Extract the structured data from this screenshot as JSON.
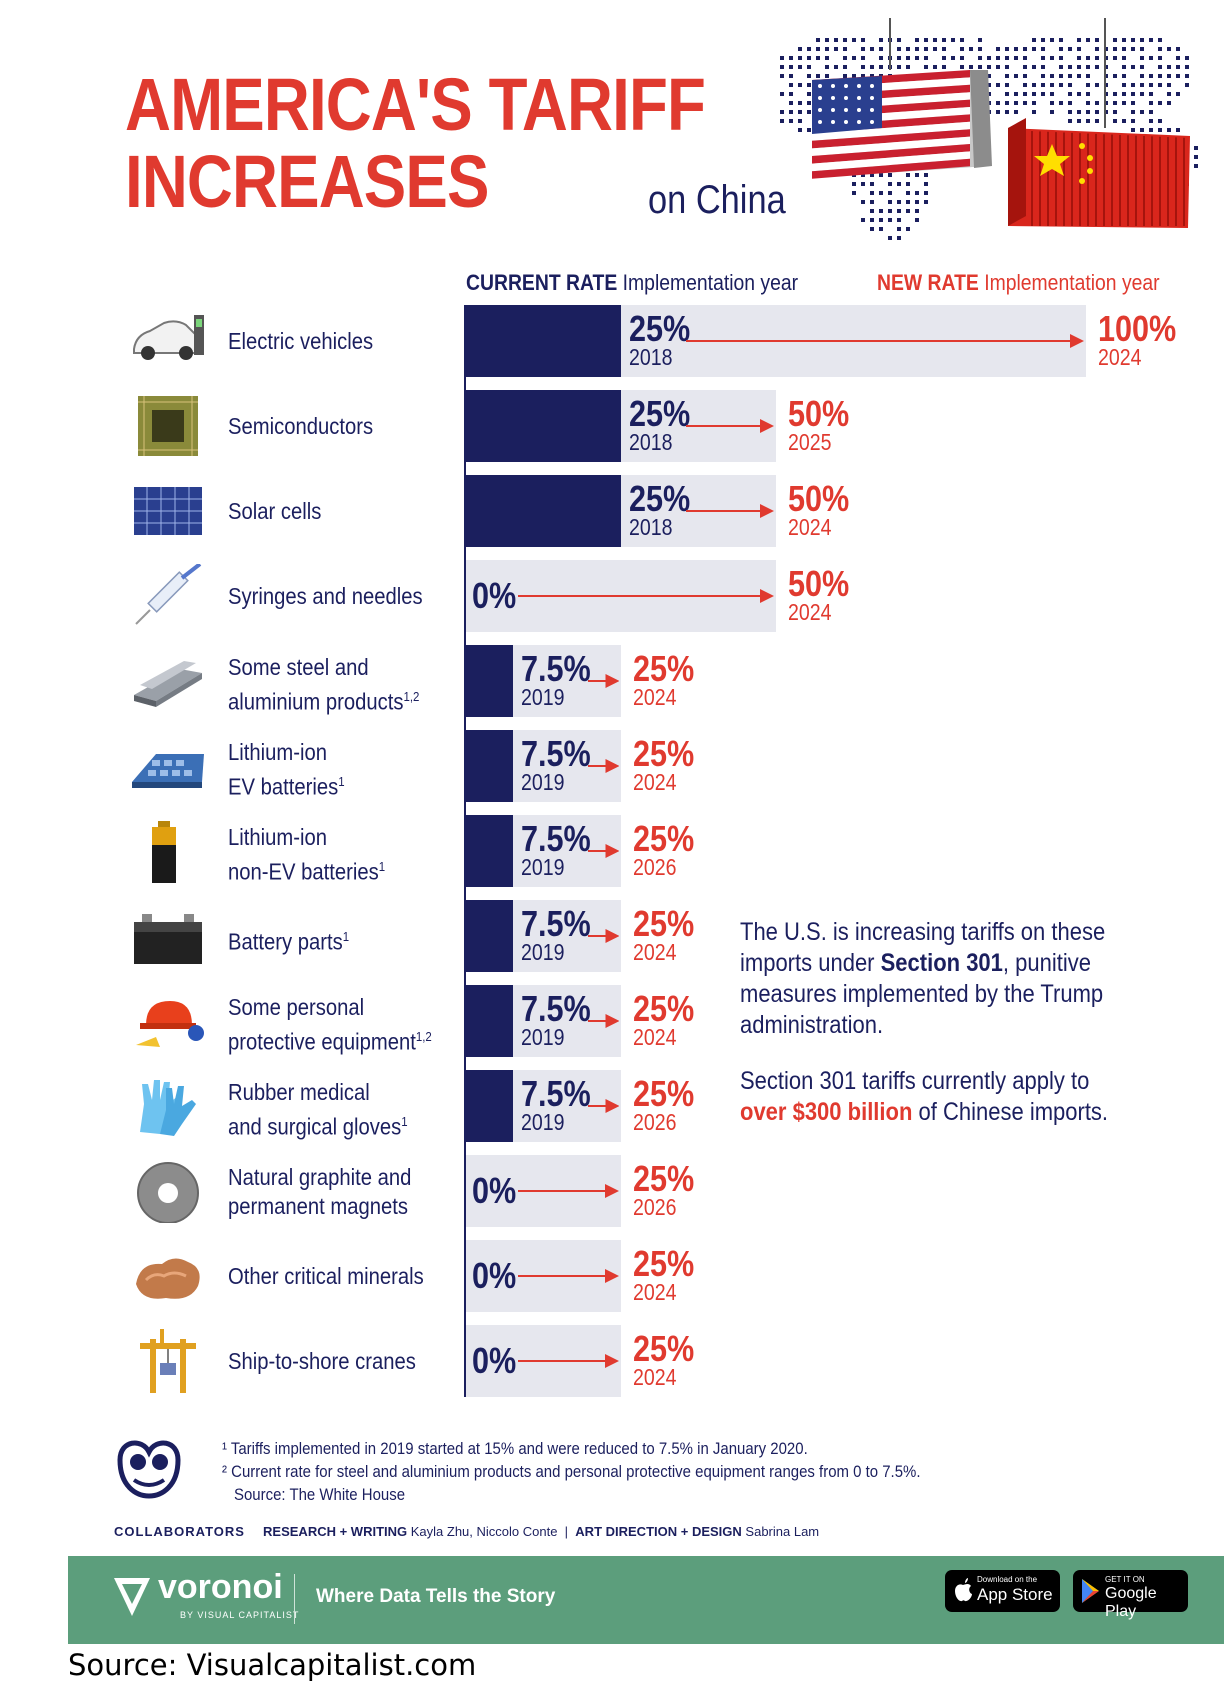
{
  "title": {
    "line1": "AMERICA'S TARIFF",
    "line2": "INCREASES",
    "sub": "on China"
  },
  "headers": {
    "current_bold": "CURRENT RATE",
    "current_rest": "Implementation year",
    "new_bold": "NEW RATE",
    "new_rest": "Implementation year"
  },
  "chart_data": {
    "type": "bar",
    "xlim": [
      0,
      100
    ],
    "rows": [
      {
        "label1": "Electric vehicles",
        "label2": "",
        "sup": "",
        "icon": "electric-car-icon",
        "current": 25,
        "current_label": "25%",
        "current_year": "2018",
        "new": 100,
        "new_label": "100%",
        "new_year": "2024"
      },
      {
        "label1": "Semiconductors",
        "label2": "",
        "sup": "",
        "icon": "cpu-chip-icon",
        "current": 25,
        "current_label": "25%",
        "current_year": "2018",
        "new": 50,
        "new_label": "50%",
        "new_year": "2025"
      },
      {
        "label1": "Solar cells",
        "label2": "",
        "sup": "",
        "icon": "solar-panel-icon",
        "current": 25,
        "current_label": "25%",
        "current_year": "2018",
        "new": 50,
        "new_label": "50%",
        "new_year": "2024"
      },
      {
        "label1": "Syringes and needles",
        "label2": "",
        "sup": "",
        "icon": "syringe-icon",
        "current": 0,
        "current_label": "0%",
        "current_year": "",
        "new": 50,
        "new_label": "50%",
        "new_year": "2024"
      },
      {
        "label1": "Some steel and",
        "label2": "aluminium products",
        "sup": "1,2",
        "icon": "steel-beams-icon",
        "current": 7.5,
        "current_label": "7.5%",
        "current_year": "2019",
        "new": 25,
        "new_label": "25%",
        "new_year": "2024"
      },
      {
        "label1": "Lithium-ion",
        "label2": "EV batteries",
        "sup": "1",
        "icon": "ev-battery-pack-icon",
        "current": 7.5,
        "current_label": "7.5%",
        "current_year": "2019",
        "new": 25,
        "new_label": "25%",
        "new_year": "2024"
      },
      {
        "label1": "Lithium-ion",
        "label2": "non-EV batteries",
        "sup": "1",
        "icon": "aa-battery-icon",
        "current": 7.5,
        "current_label": "7.5%",
        "current_year": "2019",
        "new": 25,
        "new_label": "25%",
        "new_year": "2026"
      },
      {
        "label1": "Battery parts",
        "label2": "",
        "sup": "1",
        "icon": "car-battery-icon",
        "current": 7.5,
        "current_label": "7.5%",
        "current_year": "2019",
        "new": 25,
        "new_label": "25%",
        "new_year": "2024"
      },
      {
        "label1": "Some personal",
        "label2": "protective equipment",
        "sup": "1,2",
        "icon": "hard-hat-icon",
        "current": 7.5,
        "current_label": "7.5%",
        "current_year": "2019",
        "new": 25,
        "new_label": "25%",
        "new_year": "2024"
      },
      {
        "label1": "Rubber medical",
        "label2": "and surgical gloves",
        "sup": "1",
        "icon": "gloves-icon",
        "current": 7.5,
        "current_label": "7.5%",
        "current_year": "2019",
        "new": 25,
        "new_label": "25%",
        "new_year": "2026"
      },
      {
        "label1": "Natural graphite and",
        "label2": "permanent magnets",
        "sup": "",
        "icon": "magnet-ring-icon",
        "current": 0,
        "current_label": "0%",
        "current_year": "",
        "new": 25,
        "new_label": "25%",
        "new_year": "2026"
      },
      {
        "label1": "Other critical minerals",
        "label2": "",
        "sup": "",
        "icon": "mineral-rock-icon",
        "current": 0,
        "current_label": "0%",
        "current_year": "",
        "new": 25,
        "new_label": "25%",
        "new_year": "2024"
      },
      {
        "label1": "Ship-to-shore cranes",
        "label2": "",
        "sup": "",
        "icon": "crane-icon",
        "current": 0,
        "current_label": "0%",
        "current_year": "",
        "new": 25,
        "new_label": "25%",
        "new_year": "2024"
      }
    ]
  },
  "sidebar": {
    "p1_a": "The U.S. is increasing tariffs on these imports under ",
    "p1_b": "Section 301",
    "p1_c": ", punitive measures implemented by the Trump administration.",
    "p2_a": "Section 301 tariffs currently apply to ",
    "p2_b": "over $300 billion",
    "p2_c": " of Chinese imports."
  },
  "footnotes": {
    "n1": "¹ Tariffs implemented in 2019 started at 15% and were reduced to 7.5% in January 2020.",
    "n2": "² Current rate for steel and aluminium products and personal protective equipment ranges from 0 to 7.5%.",
    "source": "Source: The White House"
  },
  "collaborators": {
    "label": "COLLABORATORS",
    "research_label": "RESEARCH + WRITING",
    "research_names": "Kayla Zhu, Niccolo Conte",
    "sep": "|",
    "art_label": "ART DIRECTION + DESIGN",
    "art_names": "Sabrina Lam"
  },
  "banner": {
    "brand": "voronoi",
    "brand_sub": "BY VISUAL CAPITALIST",
    "tagline": "Where Data Tells the Story",
    "appstore_small": "Download on the",
    "appstore_big": "App Store",
    "gplay_small": "GET IT ON",
    "gplay_big": "Google Play"
  },
  "source_caption": "Source: Visualcapitalist.com",
  "colors": {
    "navy": "#1b1f5e",
    "red": "#e03a2f",
    "bar_bg": "#e6e7ee",
    "banner": "#5c9e7c"
  }
}
